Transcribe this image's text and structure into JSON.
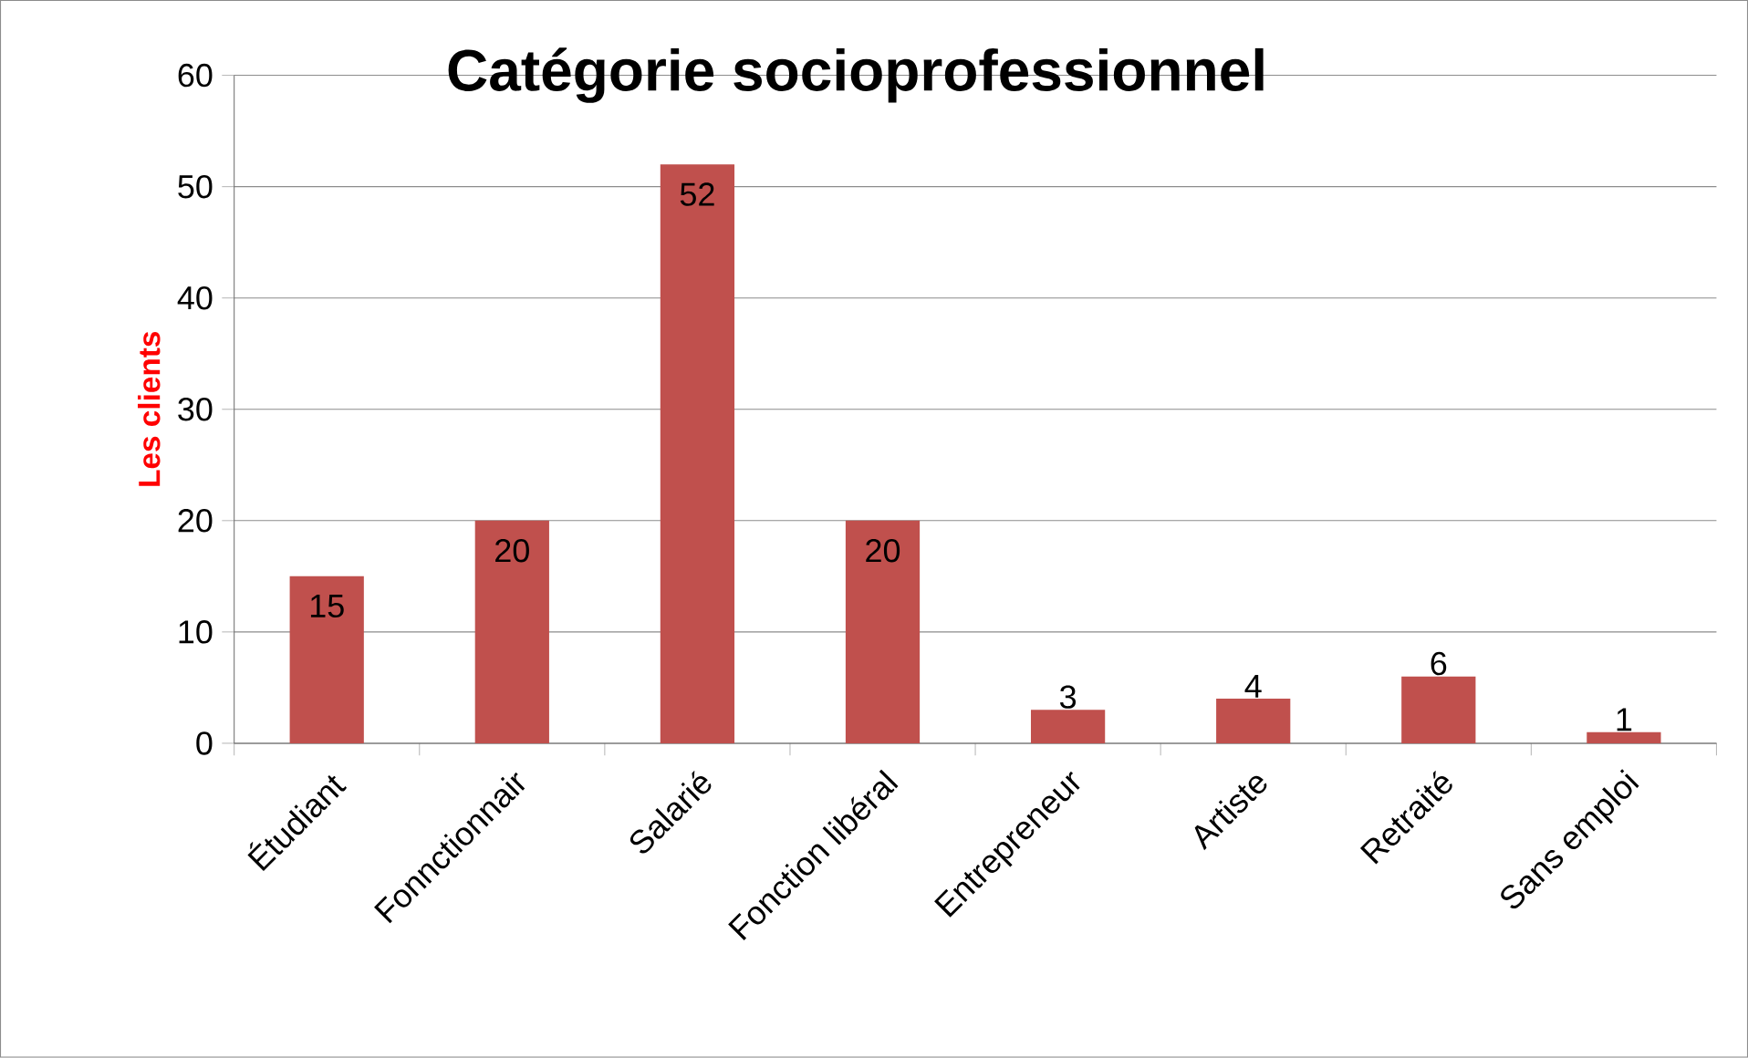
{
  "chart_data": {
    "type": "bar",
    "title": "Catégorie socioprofessionnel",
    "ylabel": "Les clients",
    "categories": [
      "Étudiant",
      "Fonnctionnair",
      "Salarié",
      "Fonction libéral",
      "Entrepreneur",
      "Artiste",
      "Retraité",
      "Sans emploi"
    ],
    "values": [
      15,
      20,
      52,
      20,
      3,
      4,
      6,
      1
    ],
    "color": "#c0504d",
    "ylim": [
      0,
      60
    ],
    "yticks": [
      0,
      10,
      20,
      30,
      40,
      50,
      60
    ],
    "grid": "y",
    "data_labels": true
  }
}
